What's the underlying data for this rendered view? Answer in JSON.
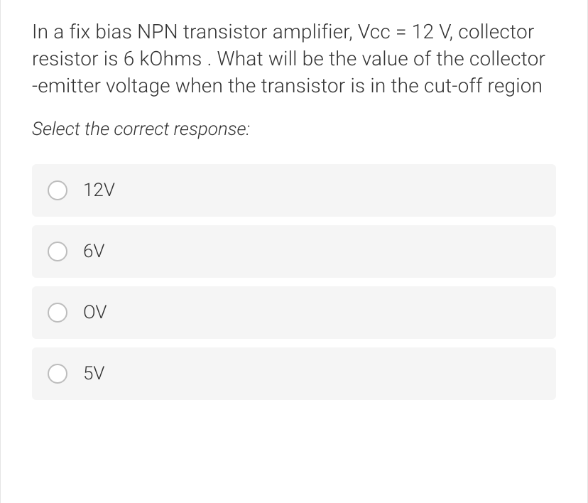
{
  "question": {
    "text": "In a fix bias NPN transistor amplifier, Vcc = 12 V, collector resistor is 6 kOhms . What will be the value of the collector -emitter voltage when the transistor is in the cut-off region"
  },
  "instruction": "Select the correct response:",
  "options": [
    {
      "label": "12V"
    },
    {
      "label": "6V"
    },
    {
      "label": "OV"
    },
    {
      "label": "5V"
    }
  ],
  "colors": {
    "text": "#333333",
    "option_bg": "#f5f5f5",
    "radio_border": "#bdbdbd",
    "page_bg": "#ffffff",
    "border": "#e5e5e5"
  },
  "typography": {
    "question_fontsize": 28,
    "instruction_fontsize": 26,
    "option_fontsize": 26,
    "font_weight": 300
  }
}
